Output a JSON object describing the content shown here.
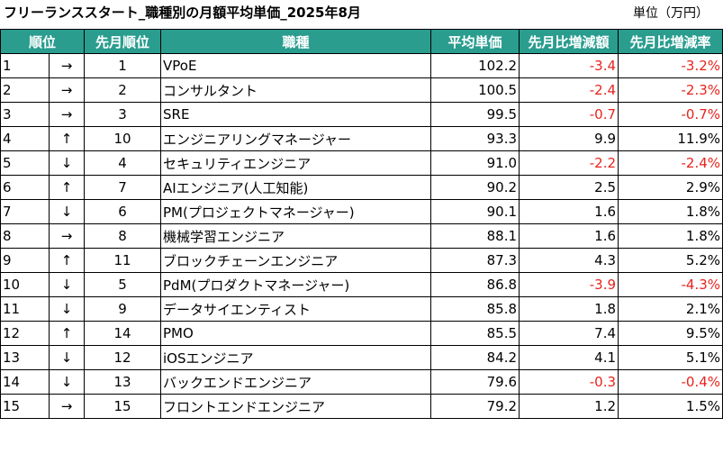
{
  "title": "フリーランススタート_職種別の月額平均単価_2025年8月",
  "unit": "単位（万円）",
  "colors": {
    "header_bg": "#2a9d8f",
    "header_text": "#ffffff",
    "negative": "#e8231d"
  },
  "headers": [
    "順位",
    "先月順位",
    "職種",
    "平均単価",
    "先月比増減額",
    "先月比増減率"
  ],
  "rows": [
    {
      "rank": "1",
      "arrow": "→",
      "prev": "1",
      "job": "VPoE",
      "price": "102.2",
      "diff": "-3.4",
      "rate": "-3.2%"
    },
    {
      "rank": "2",
      "arrow": "→",
      "prev": "2",
      "job": "コンサルタント",
      "price": "100.5",
      "diff": "-2.4",
      "rate": "-2.3%"
    },
    {
      "rank": "3",
      "arrow": "→",
      "prev": "3",
      "job": "SRE",
      "price": "99.5",
      "diff": "-0.7",
      "rate": "-0.7%"
    },
    {
      "rank": "4",
      "arrow": "↑",
      "prev": "10",
      "job": "エンジニアリングマネージャー",
      "price": "93.3",
      "diff": "9.9",
      "rate": "11.9%"
    },
    {
      "rank": "5",
      "arrow": "↓",
      "prev": "4",
      "job": "セキュリティエンジニア",
      "price": "91.0",
      "diff": "-2.2",
      "rate": "-2.4%"
    },
    {
      "rank": "6",
      "arrow": "↑",
      "prev": "7",
      "job": "AIエンジニア(人工知能)",
      "price": "90.2",
      "diff": "2.5",
      "rate": "2.9%"
    },
    {
      "rank": "7",
      "arrow": "↓",
      "prev": "6",
      "job": "PM(プロジェクトマネージャー)",
      "price": "90.1",
      "diff": "1.6",
      "rate": "1.8%"
    },
    {
      "rank": "8",
      "arrow": "→",
      "prev": "8",
      "job": "機械学習エンジニア",
      "price": "88.1",
      "diff": "1.6",
      "rate": "1.8%"
    },
    {
      "rank": "9",
      "arrow": "↑",
      "prev": "11",
      "job": "ブロックチェーンエンジニア",
      "price": "87.3",
      "diff": "4.3",
      "rate": "5.2%"
    },
    {
      "rank": "10",
      "arrow": "↓",
      "prev": "5",
      "job": "PdM(プロダクトマネージャー)",
      "price": "86.8",
      "diff": "-3.9",
      "rate": "-4.3%"
    },
    {
      "rank": "11",
      "arrow": "↓",
      "prev": "9",
      "job": "データサイエンティスト",
      "price": "85.8",
      "diff": "1.8",
      "rate": "2.1%"
    },
    {
      "rank": "12",
      "arrow": "↑",
      "prev": "14",
      "job": "PMO",
      "price": "85.5",
      "diff": "7.4",
      "rate": "9.5%"
    },
    {
      "rank": "13",
      "arrow": "↓",
      "prev": "12",
      "job": "iOSエンジニア",
      "price": "84.2",
      "diff": "4.1",
      "rate": "5.1%"
    },
    {
      "rank": "14",
      "arrow": "↓",
      "prev": "13",
      "job": "バックエンドエンジニア",
      "price": "79.6",
      "diff": "-0.3",
      "rate": "-0.4%"
    },
    {
      "rank": "15",
      "arrow": "→",
      "prev": "15",
      "job": "フロントエンドエンジニア",
      "price": "79.2",
      "diff": "1.2",
      "rate": "1.5%"
    }
  ]
}
